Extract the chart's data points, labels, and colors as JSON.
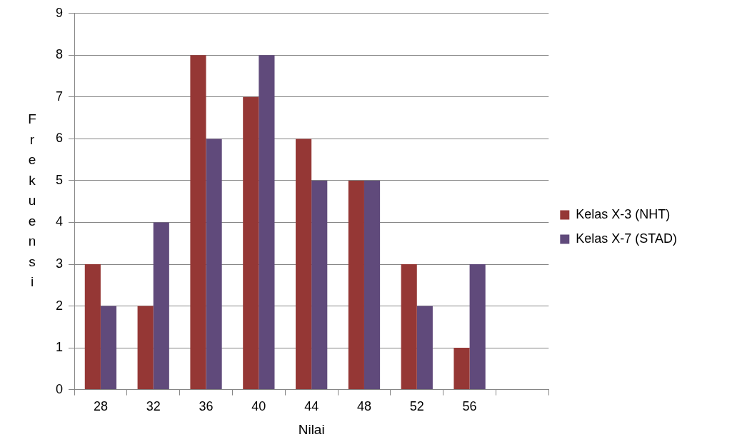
{
  "chart_data": {
    "type": "bar",
    "xlabel": "Nilai",
    "ylabel": "Frekuensi",
    "categories": [
      "28",
      "32",
      "36",
      "40",
      "44",
      "48",
      "52",
      "56",
      null
    ],
    "series": [
      {
        "name": "Kelas X-3 (NHT)",
        "color": "#953735",
        "values": [
          3,
          2,
          8,
          7,
          6,
          5,
          3,
          1,
          null
        ]
      },
      {
        "name": "Kelas X-7 (STAD)",
        "color": "#604a7b",
        "values": [
          2,
          4,
          6,
          8,
          5,
          5,
          2,
          3,
          null
        ]
      }
    ],
    "ylim": [
      0,
      9
    ],
    "yticks": [
      0,
      1,
      2,
      3,
      4,
      5,
      6,
      7,
      8,
      9
    ],
    "grid": "y",
    "legend": "right"
  }
}
